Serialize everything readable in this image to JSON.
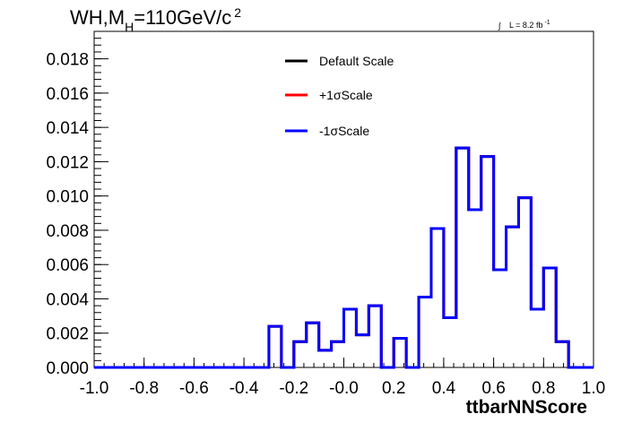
{
  "chart_data": {
    "type": "line",
    "title": "WH,M",
    "title_sub": "H",
    "title_rest": "=110GeV/c",
    "title_sup": "2",
    "lumi_integral": "∫",
    "lumi_text": "L = 8.2 fb",
    "lumi_sup": "-1",
    "xlabel": "ttbarNNScore",
    "ylabel": "",
    "xlim": [
      -1.0,
      1.0
    ],
    "ylim": [
      0.0,
      0.0196
    ],
    "x_ticks": [
      "-1.0",
      "-0.8",
      "-0.6",
      "-0.4",
      "-0.2",
      "-0.0",
      "0.2",
      "0.4",
      "0.6",
      "0.8",
      "1.0"
    ],
    "y_ticks": [
      "0.000",
      "0.002",
      "0.004",
      "0.006",
      "0.008",
      "0.010",
      "0.012",
      "0.014",
      "0.016",
      "0.018"
    ],
    "bin_edges": [
      -1.0,
      -0.95,
      -0.9,
      -0.85,
      -0.8,
      -0.75,
      -0.7,
      -0.65,
      -0.6,
      -0.55,
      -0.5,
      -0.45,
      -0.4,
      -0.35,
      -0.3,
      -0.25,
      -0.2,
      -0.15,
      -0.1,
      -0.05,
      0.0,
      0.05,
      0.1,
      0.15,
      0.2,
      0.25,
      0.3,
      0.35,
      0.4,
      0.45,
      0.5,
      0.55,
      0.6,
      0.65,
      0.7,
      0.75,
      0.8,
      0.85,
      0.9,
      0.95,
      1.0
    ],
    "series": [
      {
        "name": "Default Scale",
        "color": "#000000",
        "values": [
          0,
          0,
          0,
          0,
          0,
          0,
          0,
          0,
          0,
          0,
          0,
          0,
          0,
          0,
          0.0024,
          0,
          0.0015,
          0.0026,
          0.001,
          0.0015,
          0.0034,
          0.0019,
          0.0036,
          0,
          0.0017,
          0,
          0.0041,
          0.0081,
          0.0029,
          0.0128,
          0.0092,
          0.0123,
          0.0057,
          0.0082,
          0.0099,
          0.0034,
          0.0058,
          0.0015,
          0,
          0
        ]
      },
      {
        "name": "+1σScale",
        "color": "#ff0000",
        "values": [
          0,
          0,
          0,
          0,
          0,
          0,
          0,
          0,
          0,
          0,
          0,
          0,
          0,
          0,
          0.0024,
          0,
          0.0015,
          0.0026,
          0.001,
          0.0015,
          0.0034,
          0.0019,
          0.0036,
          0,
          0.0017,
          0,
          0.0041,
          0.0081,
          0.0029,
          0.0128,
          0.0092,
          0.0123,
          0.0057,
          0.0082,
          0.0099,
          0.0034,
          0.0058,
          0.0015,
          0,
          0
        ]
      },
      {
        "name": "-1σScale",
        "color": "#0000ff",
        "values": [
          0,
          0,
          0,
          0,
          0,
          0,
          0,
          0,
          0,
          0,
          0,
          0,
          0,
          0,
          0.0024,
          0,
          0.0015,
          0.0026,
          0.001,
          0.0015,
          0.0034,
          0.0019,
          0.0036,
          0,
          0.0017,
          0,
          0.0041,
          0.0081,
          0.0029,
          0.0128,
          0.0092,
          0.0123,
          0.0057,
          0.0082,
          0.0099,
          0.0034,
          0.0058,
          0.0015,
          0,
          0
        ]
      }
    ],
    "legend_position": "top-center",
    "grid": false
  }
}
